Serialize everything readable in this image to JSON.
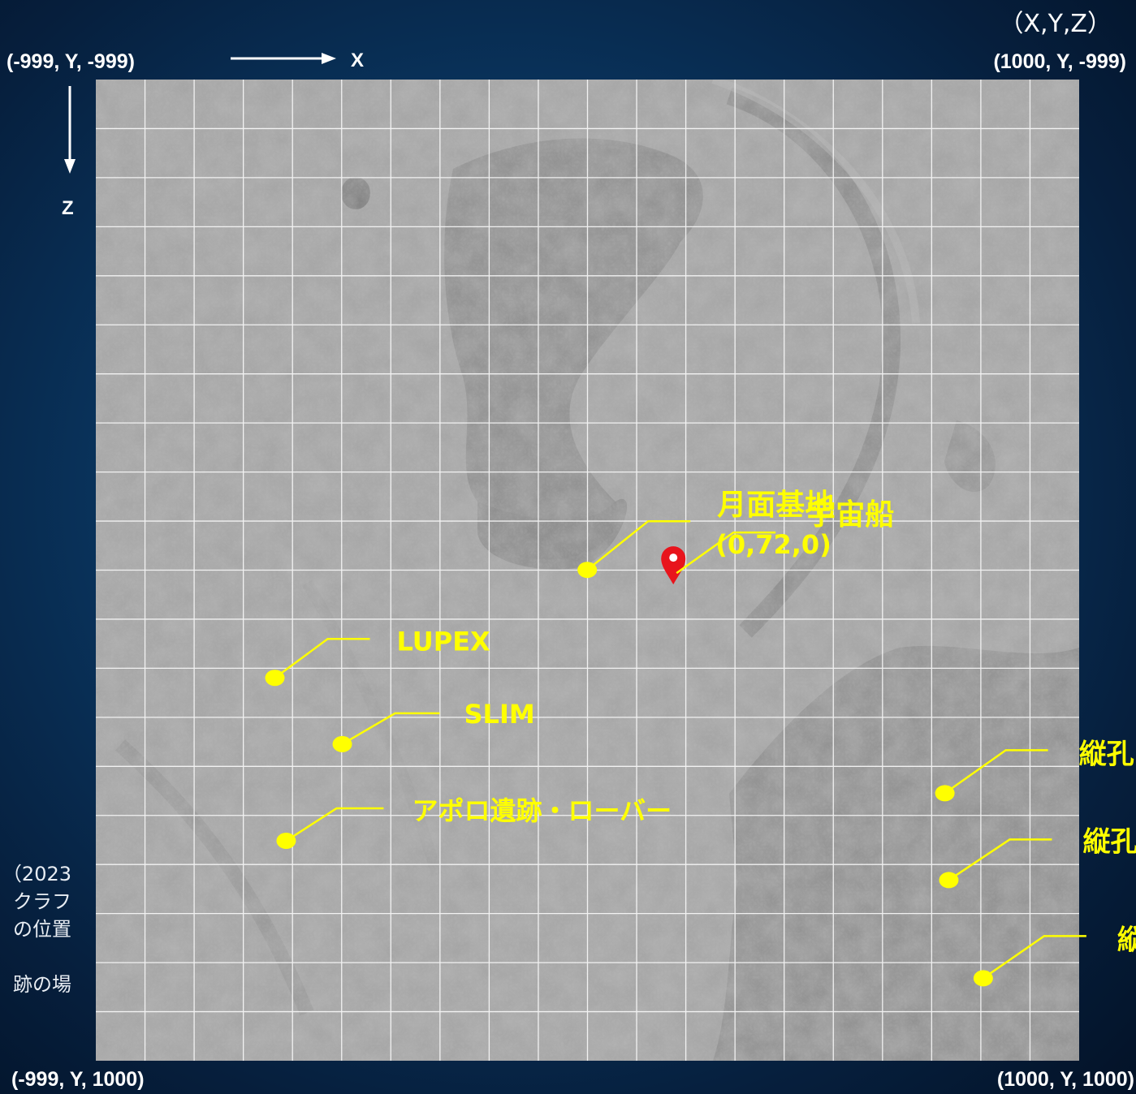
{
  "header": {
    "coord_format": "（X,Y,Z）",
    "axis_x": "X",
    "axis_z": "Z"
  },
  "corners": {
    "top_left": "(-999, Y, -999)",
    "top_right": "(1000, Y, -999)",
    "bottom_left": "(-999, Y, 1000)",
    "bottom_right": "(1000, Y, 1000)"
  },
  "left_note": [
    "（2023",
    "クラフ",
    "の位置",
    "",
    "跡の場"
  ],
  "colors": {
    "label": "#ffff00",
    "pin": "#e8141c",
    "grid": "#ffffff",
    "surface": "#a6a6a6"
  },
  "markers": [
    {
      "label": "宇宙船",
      "sublabel": "",
      "x": 175,
      "z": -20,
      "icon": "map-pin-icon"
    },
    {
      "label": "月面基地",
      "sublabel": "(0,72,0)",
      "x": 0,
      "z": 0,
      "icon": "dot"
    },
    {
      "label": "LUPEX",
      "sublabel": "",
      "x": -635,
      "z": 220,
      "icon": "dot"
    },
    {
      "label": "SLIM",
      "sublabel": "",
      "x": -498,
      "z": 355,
      "icon": "dot"
    },
    {
      "label": "アポロ遺跡・ローバー",
      "sublabel": "",
      "x": -612,
      "z": 552,
      "icon": "dot"
    },
    {
      "label": "縦孔",
      "sublabel": "",
      "x": 727,
      "z": 455,
      "icon": "dot"
    },
    {
      "label": "縦孔",
      "sublabel": "",
      "x": 735,
      "z": 632,
      "icon": "dot"
    },
    {
      "label": "縦",
      "sublabel": "",
      "x": 805,
      "z": 832,
      "icon": "dot"
    }
  ]
}
